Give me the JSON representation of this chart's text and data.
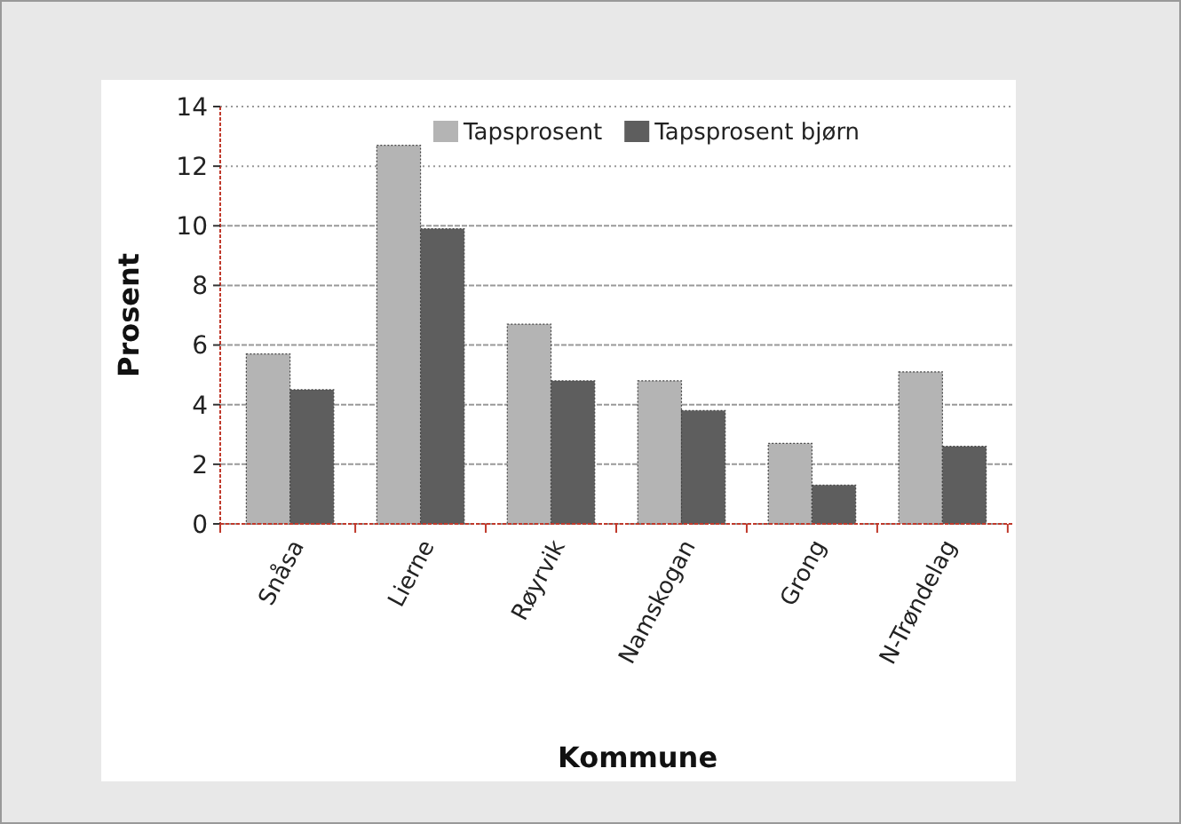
{
  "chart_data": {
    "type": "bar",
    "xlabel": "Kommune",
    "ylabel": "Prosent",
    "categories": [
      "Snåsa",
      "Lierne",
      "Røyrvik",
      "Namskogan",
      "Grong",
      "N-Trøndelag"
    ],
    "series": [
      {
        "name": "Tapsprosent",
        "color": "#b4b4b4",
        "values": [
          5.7,
          12.7,
          6.7,
          4.8,
          2.7,
          5.1
        ]
      },
      {
        "name": "Tapsprosent bjørn",
        "color": "#5e5e5e",
        "values": [
          4.5,
          9.9,
          4.8,
          3.8,
          1.3,
          2.6
        ]
      }
    ],
    "ylim": [
      0,
      14
    ],
    "yticks": [
      0,
      2,
      4,
      6,
      8,
      10,
      12,
      14
    ],
    "grid": "y",
    "legend": "top right"
  }
}
